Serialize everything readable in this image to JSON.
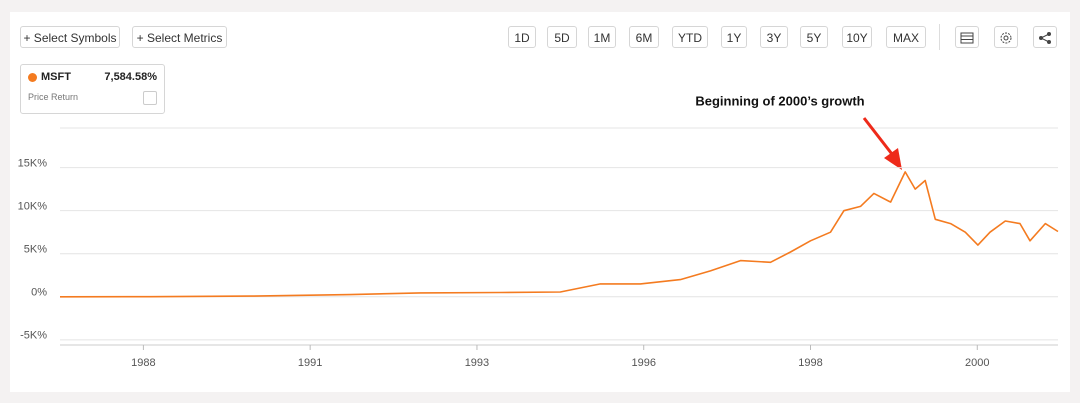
{
  "toolbar": {
    "add_buttons": [
      "+ Select Symbols",
      "+ Select Metrics"
    ],
    "ranges": [
      "1D",
      "5D",
      "1M",
      "6M",
      "YTD",
      "1Y",
      "3Y",
      "5Y",
      "10Y",
      "MAX"
    ]
  },
  "legend": {
    "symbol": "MSFT",
    "value": "7,584.58%",
    "metric": "Price Return"
  },
  "chart_data": {
    "type": "line",
    "annotation": "Beginning of 2000’s growth",
    "x": [
      1986.85,
      1988.2,
      1989.7,
      1991.2,
      1992.25,
      1993.45,
      1994.35,
      1994.95,
      1995.55,
      1996.15,
      1996.6,
      1997.05,
      1997.5,
      1997.8,
      1998.1,
      1998.4,
      1998.6,
      1998.85,
      1999.05,
      1999.3,
      1999.52,
      1999.67,
      1999.82,
      1999.97,
      2000.2,
      2000.42,
      2000.61,
      2000.79,
      2001.02,
      2001.24,
      2001.39,
      2001.62,
      2001.81
    ],
    "series": [
      {
        "name": "MSFT",
        "color": "#f47b20",
        "values": [
          0,
          10,
          80,
          250,
          450,
          500,
          550,
          1500,
          1500,
          2000,
          3000,
          4200,
          4000,
          5200,
          6500,
          7500,
          10000,
          10500,
          12000,
          11000,
          14500,
          12500,
          13500,
          9000,
          8500,
          7500,
          6000,
          7500,
          8800,
          8500,
          6500,
          8500,
          7584.58
        ]
      }
    ],
    "xlim": [
      1986.85,
      2001.81
    ],
    "xticks": [
      {
        "value": 1988.1,
        "label": "1988"
      },
      {
        "value": 1990.6,
        "label": "1991"
      },
      {
        "value": 1993.1,
        "label": "1993"
      },
      {
        "value": 1995.6,
        "label": "1996"
      },
      {
        "value": 1998.1,
        "label": "1998"
      },
      {
        "value": 2000.6,
        "label": "2000"
      }
    ],
    "ylim": [
      -5600,
      19600
    ],
    "yticks": [
      {
        "value": -5000,
        "label": "-5K%"
      },
      {
        "value": 0,
        "label": "0%"
      },
      {
        "value": 5000,
        "label": "5K%"
      },
      {
        "value": 10000,
        "label": "10K%"
      },
      {
        "value": 15000,
        "label": "15K%"
      }
    ],
    "grid": true
  }
}
